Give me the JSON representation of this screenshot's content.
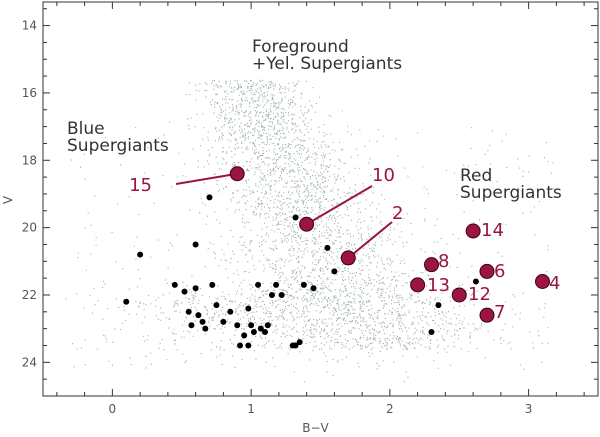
{
  "chart_data": {
    "type": "scatter",
    "title": "",
    "xlabel": "B−V",
    "ylabel": "V",
    "xlim": [
      -0.5,
      3.5
    ],
    "ylim": [
      25,
      13.3
    ],
    "y_inverted": true,
    "x_ticks": [
      0,
      1,
      2,
      3
    ],
    "y_ticks": [
      14,
      16,
      18,
      20,
      22,
      24
    ],
    "grid": false,
    "region_labels": [
      {
        "id": "foreground",
        "lines": [
          "Foreground",
          "+Yel. Supergiants"
        ]
      },
      {
        "id": "blue",
        "lines": [
          "Blue",
          "Supergiants"
        ]
      },
      {
        "id": "red",
        "lines": [
          "Red",
          "Supergiants"
        ]
      }
    ],
    "background_field": {
      "description_color": "#9fb0ad",
      "approx_count": 6000
    },
    "black_points": [
      [
        0.1,
        22.2
      ],
      [
        0.2,
        20.8
      ],
      [
        0.45,
        21.7
      ],
      [
        0.52,
        21.9
      ],
      [
        0.55,
        22.5
      ],
      [
        0.57,
        22.9
      ],
      [
        0.6,
        21.8
      ],
      [
        0.62,
        22.6
      ],
      [
        0.65,
        22.8
      ],
      [
        0.67,
        23.0
      ],
      [
        0.7,
        19.1
      ],
      [
        0.72,
        21.7
      ],
      [
        0.75,
        22.3
      ],
      [
        0.8,
        22.8
      ],
      [
        0.85,
        22.5
      ],
      [
        0.9,
        22.9
      ],
      [
        0.92,
        23.5
      ],
      [
        0.95,
        23.2
      ],
      [
        0.98,
        22.4
      ],
      [
        1.0,
        22.9
      ],
      [
        1.02,
        23.1
      ],
      [
        1.05,
        21.7
      ],
      [
        1.07,
        23.0
      ],
      [
        1.1,
        23.1
      ],
      [
        1.12,
        22.9
      ],
      [
        1.15,
        22.0
      ],
      [
        1.18,
        21.7
      ],
      [
        1.22,
        22.0
      ],
      [
        1.3,
        23.5
      ],
      [
        1.32,
        23.5
      ],
      [
        1.32,
        19.7
      ],
      [
        1.38,
        21.7
      ],
      [
        1.45,
        21.8
      ],
      [
        1.55,
        20.6
      ],
      [
        1.6,
        21.3
      ],
      [
        0.6,
        20.5
      ],
      [
        0.98,
        23.5
      ],
      [
        1.35,
        23.4
      ],
      [
        2.3,
        23.1
      ],
      [
        2.35,
        22.3
      ],
      [
        2.62,
        21.6
      ]
    ],
    "highlighted": [
      {
        "label": "15",
        "x": 0.9,
        "y": 18.4
      },
      {
        "label": "10",
        "x": 1.4,
        "y": 19.9
      },
      {
        "label": "2",
        "x": 1.7,
        "y": 20.9
      },
      {
        "label": "8",
        "x": 2.3,
        "y": 21.1
      },
      {
        "label": "13",
        "x": 2.2,
        "y": 21.7
      },
      {
        "label": "12",
        "x": 2.5,
        "y": 22.0
      },
      {
        "label": "14",
        "x": 2.6,
        "y": 20.1
      },
      {
        "label": "6",
        "x": 2.7,
        "y": 21.3
      },
      {
        "label": "7",
        "x": 2.7,
        "y": 22.6
      },
      {
        "label": "4",
        "x": 3.1,
        "y": 21.6
      }
    ],
    "colors": {
      "highlight": "#9b1540",
      "black_points": "#000000",
      "field": "#9fb0ad"
    }
  }
}
